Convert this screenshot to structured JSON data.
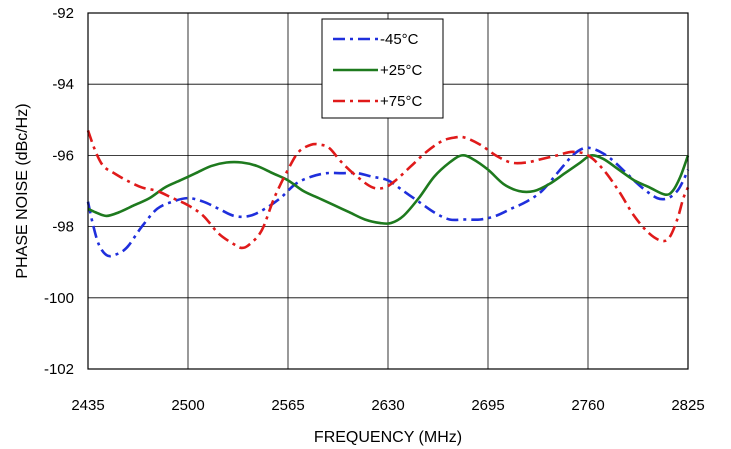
{
  "chart_data": {
    "type": "line",
    "title": "",
    "xlabel": "FREQUENCY (MHz)",
    "ylabel": "PHASE NOISE  (dBc/Hz)",
    "xlim": [
      2435,
      2825
    ],
    "ylim": [
      -102,
      -92
    ],
    "x_ticks": [
      2435,
      2500,
      2565,
      2630,
      2695,
      2760,
      2825
    ],
    "y_ticks": [
      -92,
      -94,
      -96,
      -98,
      -100,
      -102
    ],
    "grid": true,
    "legend_position": "top-center",
    "series": [
      {
        "name": "-45°C",
        "color": "#1f2fdc",
        "dash": "dash-dot",
        "x": [
          2435,
          2438,
          2442,
          2447,
          2452,
          2460,
          2470,
          2480,
          2490,
          2500,
          2510,
          2520,
          2530,
          2540,
          2550,
          2560,
          2570,
          2580,
          2590,
          2600,
          2610,
          2620,
          2630,
          2640,
          2650,
          2660,
          2670,
          2680,
          2690,
          2700,
          2710,
          2720,
          2730,
          2740,
          2750,
          2757,
          2762,
          2768,
          2775,
          2785,
          2795,
          2805,
          2812,
          2818,
          2822,
          2825
        ],
        "y": [
          -97.3,
          -97.9,
          -98.5,
          -98.8,
          -98.8,
          -98.6,
          -98.0,
          -97.5,
          -97.3,
          -97.2,
          -97.3,
          -97.5,
          -97.7,
          -97.7,
          -97.5,
          -97.2,
          -96.8,
          -96.6,
          -96.5,
          -96.5,
          -96.5,
          -96.6,
          -96.7,
          -97.0,
          -97.3,
          -97.6,
          -97.8,
          -97.8,
          -97.8,
          -97.7,
          -97.5,
          -97.3,
          -97.0,
          -96.5,
          -96.0,
          -95.8,
          -95.8,
          -95.9,
          -96.1,
          -96.5,
          -96.9,
          -97.2,
          -97.2,
          -97.0,
          -96.7,
          -96.4
        ]
      },
      {
        "name": "+25°C",
        "color": "#1e7a1e",
        "dash": "solid",
        "x": [
          2435,
          2440,
          2447,
          2455,
          2465,
          2475,
          2485,
          2495,
          2505,
          2515,
          2525,
          2535,
          2545,
          2555,
          2565,
          2575,
          2585,
          2595,
          2605,
          2615,
          2625,
          2632,
          2640,
          2650,
          2660,
          2670,
          2678,
          2685,
          2695,
          2705,
          2715,
          2725,
          2735,
          2745,
          2755,
          2762,
          2770,
          2780,
          2790,
          2800,
          2810,
          2815,
          2820,
          2825
        ],
        "y": [
          -97.5,
          -97.6,
          -97.7,
          -97.6,
          -97.4,
          -97.2,
          -96.9,
          -96.7,
          -96.5,
          -96.3,
          -96.2,
          -96.2,
          -96.3,
          -96.5,
          -96.7,
          -97.0,
          -97.2,
          -97.4,
          -97.6,
          -97.8,
          -97.9,
          -97.9,
          -97.7,
          -97.2,
          -96.6,
          -96.2,
          -96.0,
          -96.1,
          -96.4,
          -96.8,
          -97.0,
          -97.0,
          -96.8,
          -96.5,
          -96.2,
          -96.0,
          -96.1,
          -96.4,
          -96.7,
          -96.9,
          -97.1,
          -97.0,
          -96.6,
          -96.0
        ]
      },
      {
        "name": "+75°C",
        "color": "#e01a1a",
        "dash": "dash-dot",
        "x": [
          2435,
          2440,
          2445,
          2452,
          2460,
          2470,
          2480,
          2490,
          2500,
          2510,
          2520,
          2530,
          2535,
          2540,
          2548,
          2556,
          2565,
          2572,
          2580,
          2586,
          2592,
          2600,
          2610,
          2620,
          2628,
          2635,
          2645,
          2655,
          2665,
          2673,
          2680,
          2690,
          2700,
          2710,
          2720,
          2730,
          2740,
          2750,
          2760,
          2770,
          2780,
          2790,
          2800,
          2808,
          2813,
          2818,
          2822,
          2825
        ],
        "y": [
          -95.3,
          -95.9,
          -96.3,
          -96.5,
          -96.7,
          -96.9,
          -97.0,
          -97.2,
          -97.4,
          -97.7,
          -98.2,
          -98.5,
          -98.6,
          -98.5,
          -98.1,
          -97.2,
          -96.4,
          -95.9,
          -95.7,
          -95.7,
          -95.8,
          -96.2,
          -96.6,
          -96.9,
          -96.9,
          -96.7,
          -96.3,
          -95.9,
          -95.6,
          -95.5,
          -95.5,
          -95.7,
          -96.0,
          -96.2,
          -96.2,
          -96.1,
          -96.0,
          -95.9,
          -96.0,
          -96.4,
          -97.0,
          -97.7,
          -98.2,
          -98.4,
          -98.3,
          -97.8,
          -97.2,
          -96.9
        ]
      }
    ]
  }
}
